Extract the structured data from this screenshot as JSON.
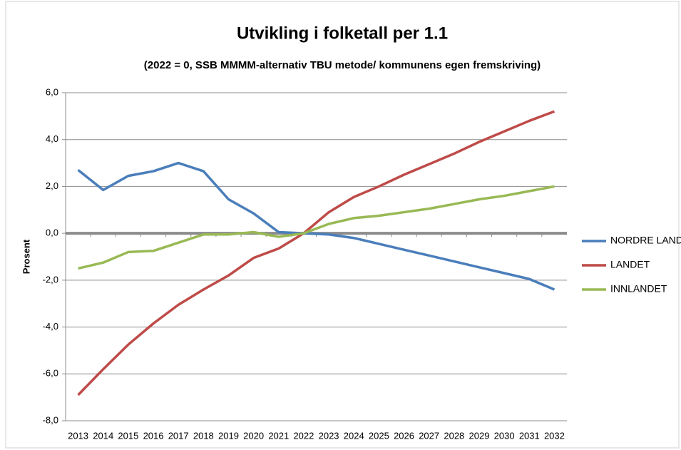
{
  "chart_data": {
    "type": "line",
    "title": "Utvikling i folketall per 1.1",
    "subtitle": "(2022 = 0, SSB MMMM-alternativ TBU metode/ kommunens egen fremskriving)",
    "y_label": "Prosent",
    "categories": [
      "2013",
      "2014",
      "2015",
      "2016",
      "2017",
      "2018",
      "2019",
      "2020",
      "2021",
      "2022",
      "2023",
      "2024",
      "2025",
      "2026",
      "2027",
      "2028",
      "2029",
      "2030",
      "2031",
      "2032"
    ],
    "series": [
      {
        "name": "NORDRE LAND",
        "color": "#4a7ebb",
        "values": [
          2.7,
          1.85,
          2.45,
          2.65,
          3.0,
          2.65,
          1.45,
          0.85,
          0.05,
          0,
          -0.05,
          -0.2,
          -0.45,
          -0.7,
          -0.95,
          -1.2,
          -1.45,
          -1.7,
          -1.95,
          -2.4
        ]
      },
      {
        "name": "LANDET",
        "color": "#be4b48",
        "values": [
          -6.9,
          -5.8,
          -4.75,
          -3.85,
          -3.05,
          -2.4,
          -1.8,
          -1.05,
          -0.65,
          0,
          0.9,
          1.55,
          2.0,
          2.5,
          2.95,
          3.4,
          3.9,
          4.35,
          4.8,
          5.2
        ]
      },
      {
        "name": "INNLANDET",
        "color": "#98b954",
        "values": [
          -1.5,
          -1.25,
          -0.8,
          -0.75,
          -0.4,
          -0.05,
          -0.05,
          0.05,
          -0.15,
          0,
          0.4,
          0.65,
          0.75,
          0.9,
          1.05,
          1.25,
          1.45,
          1.6,
          1.8,
          2.0
        ]
      }
    ],
    "ylim": [
      -8,
      6
    ],
    "yticks": [
      {
        "value": -8,
        "label": "-8,0"
      },
      {
        "value": -6,
        "label": "-6,0"
      },
      {
        "value": -4,
        "label": "-4,0"
      },
      {
        "value": -2,
        "label": "-2,0"
      },
      {
        "value": 0,
        "label": "0,0"
      },
      {
        "value": 2,
        "label": "2,0"
      },
      {
        "value": 4,
        "label": "4,0"
      },
      {
        "value": 6,
        "label": "6,0"
      }
    ],
    "grid": true,
    "legend": "right"
  }
}
